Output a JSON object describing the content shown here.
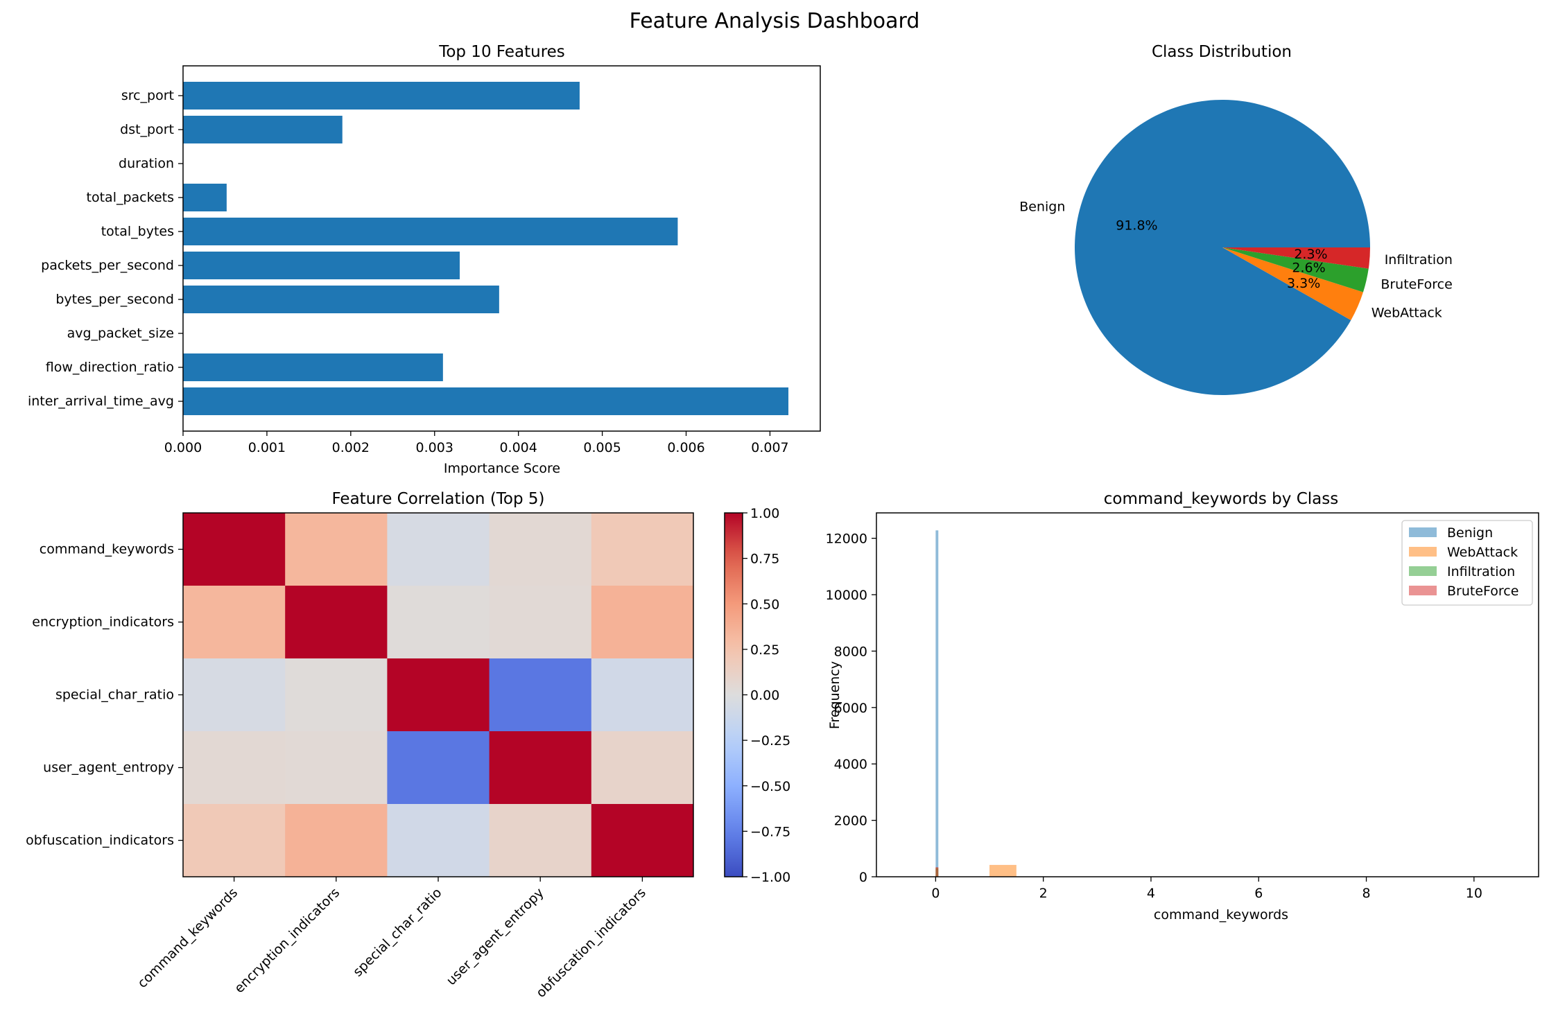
{
  "figure": {
    "title": "Feature Analysis Dashboard"
  },
  "colors": {
    "bar": "#1f77b4",
    "pie": [
      "#1f77b4",
      "#ff7f0e",
      "#2ca02c",
      "#d62728"
    ],
    "hist": [
      "#1f77b4",
      "#ff7f0e",
      "#2ca02c",
      "#d62728"
    ]
  },
  "chart_data": [
    {
      "id": "features",
      "type": "bar",
      "orientation": "horizontal",
      "title": "Top 10 Features",
      "xlabel": "Importance Score",
      "ylabel": "",
      "categories": [
        "src_port",
        "dst_port",
        "duration",
        "total_packets",
        "total_bytes",
        "packets_per_second",
        "bytes_per_second",
        "avg_packet_size",
        "flow_direction_ratio",
        "inter_arrival_time_avg"
      ],
      "values": [
        0.00473,
        0.0019,
        0.0,
        0.00052,
        0.0059,
        0.0033,
        0.00377,
        0.0,
        0.0031,
        0.00722
      ],
      "xlim": [
        0,
        0.0076
      ],
      "xticks": [
        0,
        0.001,
        0.002,
        0.003,
        0.004,
        0.005,
        0.006,
        0.007
      ],
      "xtick_labels": [
        "0.000",
        "0.001",
        "0.002",
        "0.003",
        "0.004",
        "0.005",
        "0.006",
        "0.007"
      ]
    },
    {
      "id": "classes",
      "type": "pie",
      "title": "Class Distribution",
      "labels": [
        "Benign",
        "WebAttack",
        "BruteForce",
        "Infiltration"
      ],
      "values": [
        91.8,
        3.3,
        2.6,
        2.3
      ],
      "autopct_labels": [
        "91.8%",
        "3.3%",
        "2.6%",
        "2.3%"
      ]
    },
    {
      "id": "correlation",
      "type": "heatmap",
      "title": "Feature Correlation (Top 5)",
      "rows": [
        "command_keywords",
        "encryption_indicators",
        "special_char_ratio",
        "user_agent_entropy",
        "obfuscation_indicators"
      ],
      "cols": [
        "command_keywords",
        "encryption_indicators",
        "special_char_ratio",
        "user_agent_entropy",
        "obfuscation_indicators"
      ],
      "matrix": [
        [
          1.0,
          0.33,
          -0.05,
          0.05,
          0.2
        ],
        [
          0.33,
          1.0,
          0.02,
          0.04,
          0.36
        ],
        [
          -0.05,
          0.02,
          1.0,
          -0.8,
          -0.09
        ],
        [
          0.05,
          0.04,
          -0.8,
          1.0,
          0.1
        ],
        [
          0.2,
          0.36,
          -0.09,
          0.1,
          1.0
        ]
      ],
      "colorbar": {
        "range": [
          -1,
          1
        ],
        "ticks": [
          1.0,
          0.75,
          0.5,
          0.25,
          0.0,
          -0.25,
          -0.5,
          -0.75,
          -1.0
        ],
        "tick_labels": [
          "1.00",
          "0.75",
          "0.50",
          "0.25",
          "0.00",
          "−0.25",
          "−0.50",
          "−0.75",
          "−1.00"
        ]
      }
    },
    {
      "id": "histogram",
      "type": "bar",
      "title": "command_keywords by Class",
      "xlabel": "command_keywords",
      "ylabel": "Frequency",
      "xlim": [
        -1.1,
        11.2
      ],
      "ylim": [
        0,
        12900
      ],
      "xticks": [
        0,
        2,
        4,
        6,
        8,
        10
      ],
      "xtick_labels": [
        "0",
        "2",
        "4",
        "6",
        "8",
        "10"
      ],
      "yticks": [
        0,
        2000,
        4000,
        6000,
        8000,
        10000,
        12000
      ],
      "ytick_labels": [
        "0",
        "2000",
        "4000",
        "6000",
        "8000",
        "10000",
        "12000"
      ],
      "series": [
        {
          "name": "Benign",
          "bins": [
            [
              0.0,
              0.05,
              12280
            ]
          ]
        },
        {
          "name": "WebAttack",
          "bins": [
            [
              0.0,
              0.05,
              320
            ],
            [
              1.0,
              1.5,
              420
            ]
          ]
        },
        {
          "name": "Infiltration",
          "bins": [
            [
              0.0,
              0.05,
              300
            ]
          ]
        },
        {
          "name": "BruteForce",
          "bins": [
            [
              0.0,
              0.05,
              340
            ]
          ]
        }
      ]
    }
  ]
}
